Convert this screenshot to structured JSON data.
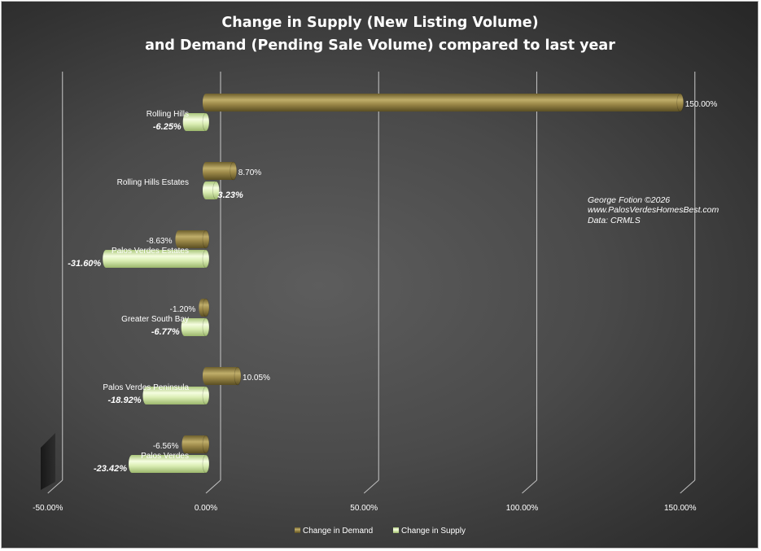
{
  "chart_data": {
    "type": "bar",
    "orientation": "horizontal",
    "title": [
      "Change in Supply (New Listing Volume)",
      "and Demand (Pending Sale Volume) compared to last year"
    ],
    "categories": [
      "Rolling Hills",
      "Rolling Hills Estates",
      "Palos Verdes Estates",
      "Greater South Bay",
      "Palos Verdes Peninsula",
      "Palos Verdes"
    ],
    "series": [
      {
        "name": "Change in Demand",
        "values": [
          150.0,
          8.7,
          -8.63,
          -1.2,
          10.05,
          -6.56
        ],
        "labels": [
          "150.00%",
          "8.70%",
          "-8.63%",
          "-1.20%",
          "10.05%",
          "-6.56%"
        ],
        "color": "#8c7a3c"
      },
      {
        "name": "Change in Supply",
        "values": [
          -6.25,
          3.23,
          -31.6,
          -6.77,
          -18.92,
          -23.42
        ],
        "labels": [
          "-6.25%",
          "3.23%",
          "-31.60%",
          "-6.77%",
          "-18.92%",
          "-23.42%"
        ],
        "color": "#d8ecae"
      }
    ],
    "xlim": [
      -50,
      150
    ],
    "xticks": [
      "-50.00%",
      "0.00%",
      "50.00%",
      "100.00%",
      "150.00%"
    ],
    "xtick_values": [
      -50,
      0,
      50,
      100,
      150
    ],
    "grid": true,
    "legend_position": "bottom",
    "annotation": [
      "George Fotion ©2026",
      "www.PalosVerdesHomesBest.com",
      "Data: CRMLS"
    ]
  }
}
